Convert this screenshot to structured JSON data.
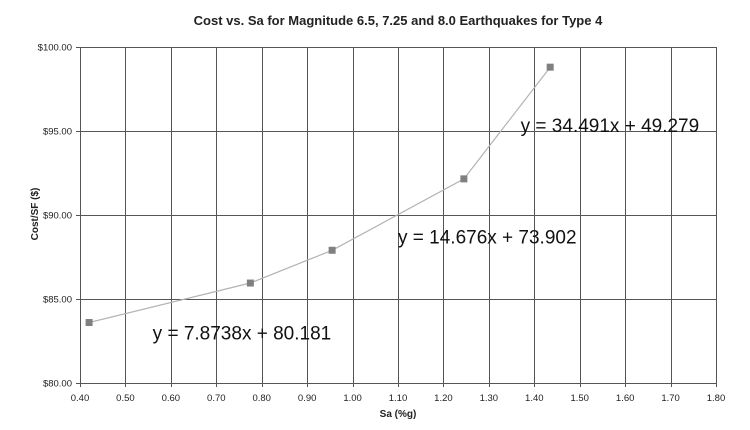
{
  "chart_data": {
    "type": "scatter",
    "title": "Cost vs. Sa for Magnitude 6.5, 7.25 and 8.0 Earthquakes for Type 4",
    "xlabel": "Sa (%g)",
    "ylabel": "Cost/SF ($)",
    "xlim": [
      0.4,
      1.8
    ],
    "ylim": [
      80,
      100
    ],
    "x_ticks": [
      0.4,
      0.5,
      0.6,
      0.7,
      0.8,
      0.9,
      1.0,
      1.1,
      1.2,
      1.3,
      1.4,
      1.5,
      1.6,
      1.7,
      1.8
    ],
    "x_tick_labels": [
      "0.40",
      "0.50",
      "0.60",
      "0.70",
      "0.80",
      "0.90",
      "1.00",
      "1.10",
      "1.20",
      "1.30",
      "1.40",
      "1.50",
      "1.60",
      "1.70",
      "1.80"
    ],
    "y_ticks": [
      80,
      85,
      90,
      95,
      100
    ],
    "y_tick_labels": [
      "$80.00",
      "$85.00",
      "$90.00",
      "$95.00",
      "$100.00"
    ],
    "grid": true,
    "series": [
      {
        "name": "Type 4",
        "marker": "square",
        "line": true,
        "x": [
          0.42,
          0.775,
          0.955,
          1.245,
          1.435
        ],
        "y": [
          83.6,
          85.95,
          87.9,
          92.15,
          98.8
        ]
      }
    ],
    "annotations": [
      {
        "text": "y = 7.8738x + 80.181",
        "x": 0.56,
        "y": 82.6
      },
      {
        "text": "y = 14.676x + 73.902",
        "x": 1.1,
        "y": 88.3
      },
      {
        "text": "y = 34.491x + 49.279",
        "x": 1.37,
        "y": 94.95
      }
    ],
    "colors": {
      "marker": "#808080",
      "line": "#b3b3b3",
      "grid": "#555555",
      "text": "#222222"
    }
  }
}
